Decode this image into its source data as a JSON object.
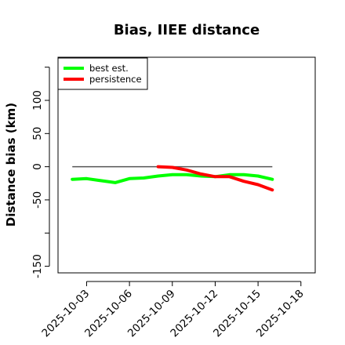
{
  "chart_data": {
    "type": "line",
    "title": "Bias, IIEE distance",
    "xlabel": "",
    "ylabel": "Distance bias (km)",
    "xlim": [
      "2025-10-01",
      "2025-10-19"
    ],
    "ylim": [
      -160,
      165
    ],
    "x_ticks": [
      "2025-10-03",
      "2025-10-06",
      "2025-10-09",
      "2025-10-12",
      "2025-10-15",
      "2025-10-18"
    ],
    "y_ticks": [
      {
        "value": -150,
        "label": "-150"
      },
      {
        "value": -100,
        "label": ""
      },
      {
        "value": -50,
        "label": "-50"
      },
      {
        "value": 0,
        "label": "0"
      },
      {
        "value": 50,
        "label": "50"
      },
      {
        "value": 100,
        "label": "100"
      },
      {
        "value": 150,
        "label": ""
      }
    ],
    "reference_line": {
      "y": 0,
      "x_from": "2025-10-02",
      "x_to": "2025-10-16",
      "color": "#555555"
    },
    "legend_position": "top-left",
    "grid": false,
    "series": [
      {
        "name": "best est.",
        "color": "#00ff00",
        "points": [
          [
            "2025-10-02",
            -19
          ],
          [
            "2025-10-03",
            -18
          ],
          [
            "2025-10-04",
            -21
          ],
          [
            "2025-10-05",
            -24
          ],
          [
            "2025-10-06",
            -18
          ],
          [
            "2025-10-07",
            -17
          ],
          [
            "2025-10-08",
            -14
          ],
          [
            "2025-10-09",
            -12
          ],
          [
            "2025-10-10",
            -12
          ],
          [
            "2025-10-11",
            -14
          ],
          [
            "2025-10-12",
            -15
          ],
          [
            "2025-10-13",
            -12
          ],
          [
            "2025-10-14",
            -12
          ],
          [
            "2025-10-15",
            -14
          ],
          [
            "2025-10-16",
            -19
          ]
        ]
      },
      {
        "name": "persistence",
        "color": "#ff0000",
        "points": [
          [
            "2025-10-08",
            0
          ],
          [
            "2025-10-09",
            -1
          ],
          [
            "2025-10-10",
            -5
          ],
          [
            "2025-10-11",
            -11
          ],
          [
            "2025-10-12",
            -15
          ],
          [
            "2025-10-13",
            -15
          ],
          [
            "2025-10-14",
            -22
          ],
          [
            "2025-10-15",
            -27
          ],
          [
            "2025-10-16",
            -35
          ]
        ]
      }
    ]
  }
}
